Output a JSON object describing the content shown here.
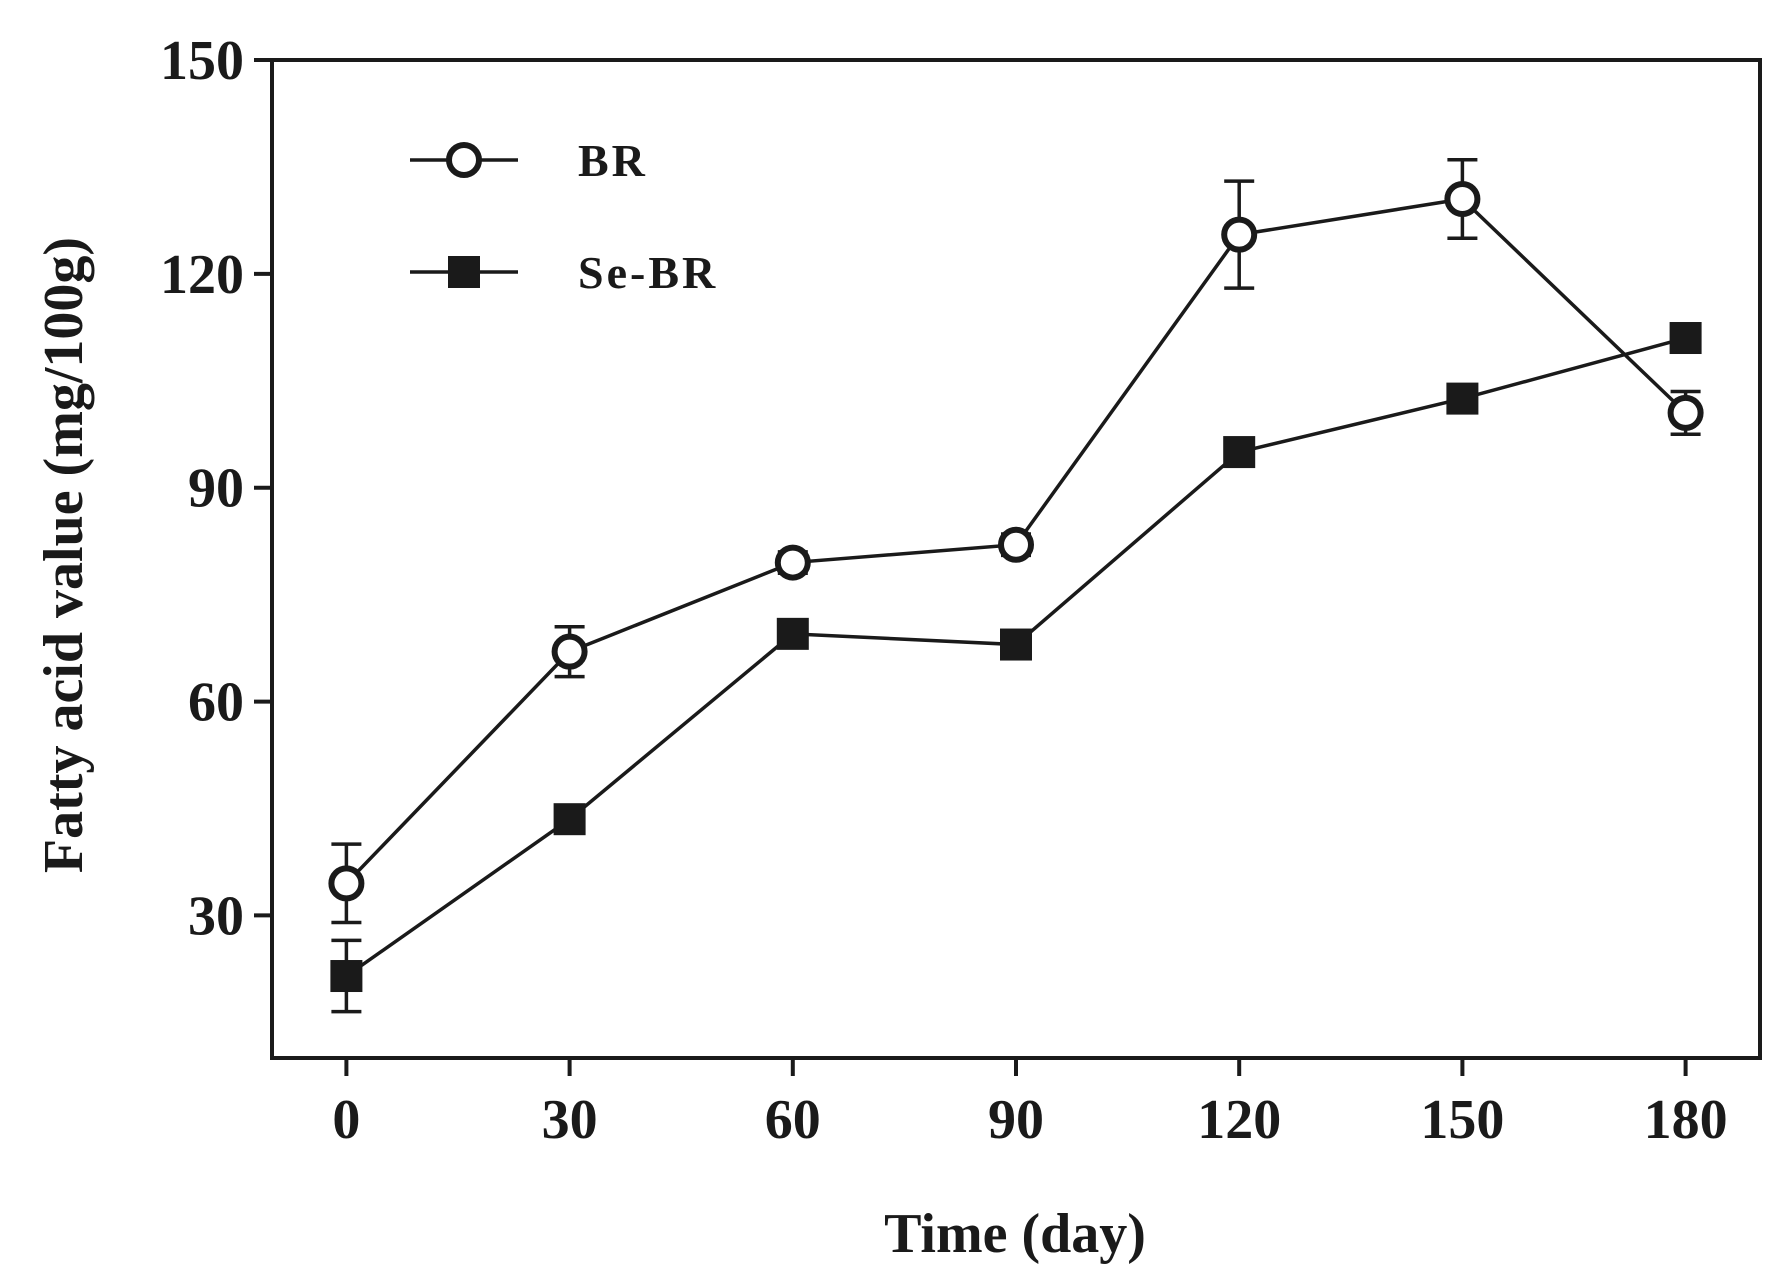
{
  "chart_data": {
    "type": "line",
    "title": "",
    "xlabel": "Time (day)",
    "ylabel": "Fatty acid value (mg/100g)",
    "x": [
      0,
      30,
      60,
      90,
      120,
      150,
      180
    ],
    "xlim": [
      -10,
      190
    ],
    "ylim": [
      10,
      150
    ],
    "yticks": [
      30,
      60,
      90,
      120,
      150
    ],
    "grid": false,
    "legend": "top-left",
    "series": [
      {
        "name": "BR",
        "marker": "open-circle",
        "values": [
          34.5,
          67,
          79.5,
          82,
          125.5,
          130.5,
          100.5
        ],
        "errors": [
          5.5,
          3.5,
          1.5,
          1.5,
          7.5,
          5.5,
          3.0
        ]
      },
      {
        "name": "Se-BR",
        "marker": "filled-square",
        "values": [
          21.5,
          43.5,
          69.5,
          68,
          95,
          102.5,
          111
        ],
        "errors": [
          5.0,
          1.0,
          1.0,
          1.0,
          1.0,
          1.0,
          1.0
        ]
      }
    ],
    "colors": {
      "line": "#1a1a1a",
      "background": "#ffffff"
    }
  }
}
